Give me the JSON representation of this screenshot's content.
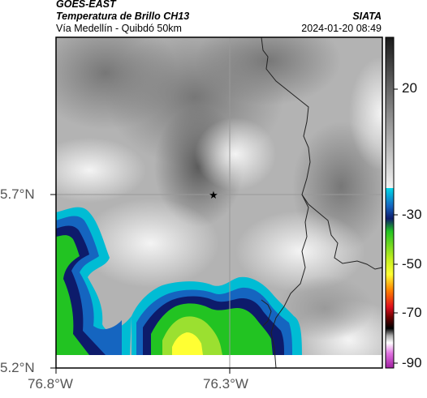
{
  "header": {
    "satellite": "GOES-EAST",
    "product": "Temperatura de Brillo CH13",
    "region": "Vía Medellín - Quibdó 50km",
    "organization": "SIATA",
    "timestamp": "2024-01-20 08:49"
  },
  "map": {
    "lat_ticks": [
      "5.7°N",
      "5.2°N"
    ],
    "lon_ticks": [
      "76.8°W",
      "76.3°W"
    ],
    "marker_icon": "star-icon",
    "frame_color": "#000000",
    "grid_color": "#999999",
    "border_color": "#222222"
  },
  "colorbar": {
    "ticks": [
      "20",
      "-30",
      "-50",
      "-70",
      "-90"
    ],
    "colors": {
      "warm_gray_top": "#1a1a1a",
      "warm_gray_bottom": "#f2f2f2",
      "cyan": "#00bcd4",
      "blue": "#1565c0",
      "dark_blue": "#0d1b6b",
      "green": "#22c322",
      "yellow": "#ffff33",
      "orange": "#ff7f00",
      "red": "#e0101e",
      "black": "#000000",
      "magenta": "#c040c0"
    }
  }
}
